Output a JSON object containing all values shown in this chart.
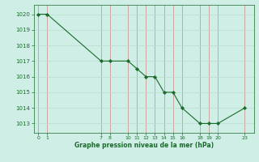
{
  "x": [
    0,
    1,
    7,
    8,
    10,
    11,
    12,
    13,
    14,
    15,
    16,
    18,
    19,
    20,
    23
  ],
  "y": [
    1020,
    1020,
    1017,
    1017,
    1017,
    1016.5,
    1016,
    1016,
    1015,
    1015,
    1014,
    1013,
    1013,
    1013,
    1014
  ],
  "xlim": [
    -0.5,
    24
  ],
  "ylim": [
    1012.4,
    1020.6
  ],
  "yticks": [
    1013,
    1014,
    1015,
    1016,
    1017,
    1018,
    1019,
    1020
  ],
  "xticks": [
    0,
    1,
    7,
    8,
    10,
    11,
    12,
    13,
    14,
    15,
    16,
    18,
    19,
    20,
    23
  ],
  "xlabel": "Graphe pression niveau de la mer (hPa)",
  "line_color": "#1a6b2a",
  "marker_color": "#1a6b2a",
  "bg_color": "#ceeee6",
  "grid_color_major_x": "#cc8888",
  "grid_color_major_y": "#bbddcc",
  "title_color": "#1a6b2a"
}
